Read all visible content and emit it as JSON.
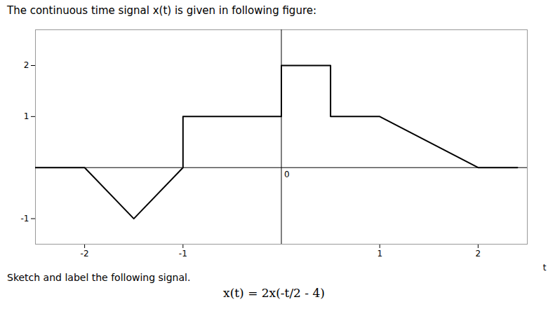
{
  "chart_data": {
    "type": "line",
    "title": "The continuous time signal x(t) is given in following figure:",
    "subtitle": "Sketch and label the following signal.",
    "x": [
      -2.5,
      -2.0,
      -1.5,
      -1.0,
      -1.0,
      0.0,
      0.0,
      0.5,
      0.5,
      1.0,
      2.0,
      2.4
    ],
    "values": [
      0.0,
      0.0,
      -1.0,
      0.0,
      1.0,
      1.0,
      2.0,
      2.0,
      1.0,
      1.0,
      0.0,
      0.0
    ],
    "color": "#000000",
    "xlim": [
      -2.5,
      2.5
    ],
    "ylim": [
      -1.5,
      2.7
    ],
    "xticks": [
      -2,
      -1,
      1,
      2
    ],
    "yticks": [
      -1,
      1,
      2
    ],
    "xlabel": "t",
    "annotations": [
      {
        "text": "0",
        "x": 0,
        "y": 0
      },
      {
        "text": "x(t) = 2x(-t/2 - 4)"
      }
    ]
  }
}
